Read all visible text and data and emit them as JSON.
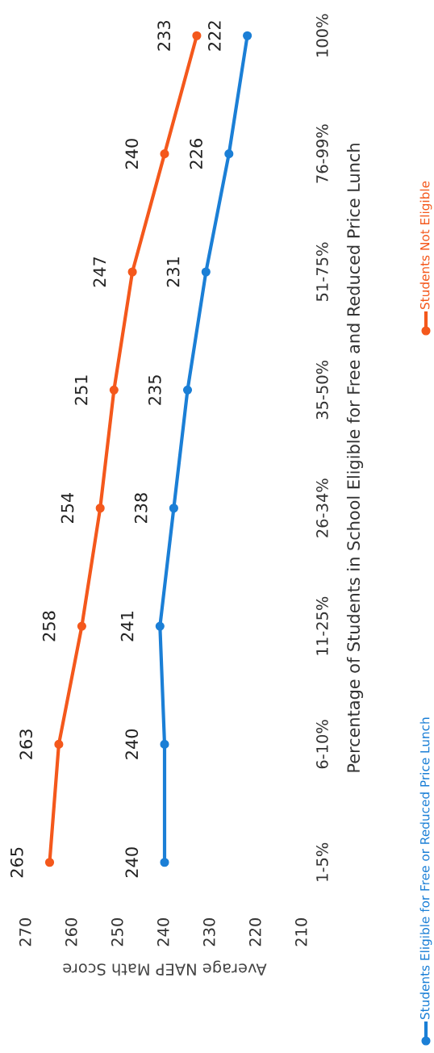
{
  "chart_data": {
    "type": "line",
    "ylabel": "Percentage of Students in School Eligible for Free and Reduced Price Lunch",
    "xlabel": "Average NAEP Math Score",
    "categories": [
      "100%",
      "76-99%",
      "51-75%",
      "35-50%",
      "26-34%",
      "11-25%",
      "6-10%",
      "1-5%"
    ],
    "series": [
      {
        "name": "Students Eligible for Free or Reduced Price Lunch",
        "color": "#1b7fd6",
        "values": [
          222,
          226,
          231,
          235,
          238,
          241,
          240,
          240
        ]
      },
      {
        "name": "Students Not Eligible",
        "color": "#f4581c",
        "values": [
          233,
          240,
          247,
          251,
          254,
          258,
          263,
          265
        ]
      }
    ],
    "orientation": "horizontal",
    "xlim": [
      270,
      210
    ],
    "xticks": [
      270,
      260,
      250,
      240,
      230,
      220,
      210
    ],
    "data_labels": true,
    "marker": "circle",
    "line_style": "solid",
    "grid": false,
    "legend": "bottom"
  }
}
